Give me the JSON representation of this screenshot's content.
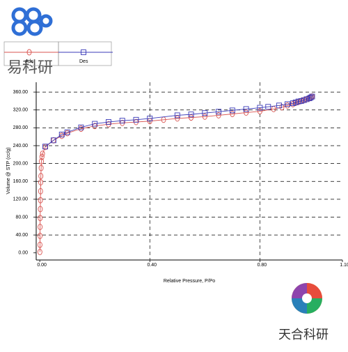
{
  "chart_data": {
    "type": "scatter-line",
    "xlabel": "Relative Pressure, P/Po",
    "ylabel": "Volume @ STP (cc/g)",
    "xlim": [
      -0.013,
      1.1
    ],
    "ylim": [
      -16,
      382
    ],
    "xticks": [
      {
        "value": 0,
        "label": "0.00"
      },
      {
        "value": 0.4,
        "label": "0.40"
      },
      {
        "value": 0.8,
        "label": "0.80"
      },
      {
        "value": 1.1,
        "label": "1.10"
      }
    ],
    "yticks": [
      {
        "value": 0,
        "label": "0.00"
      },
      {
        "value": 40,
        "label": "40.00"
      },
      {
        "value": 80,
        "label": "80.00"
      },
      {
        "value": 120,
        "label": "120.00"
      },
      {
        "value": 160,
        "label": "160.00"
      },
      {
        "value": 200,
        "label": "200.00"
      },
      {
        "value": 240,
        "label": "240.00"
      },
      {
        "value": 280,
        "label": "280.00"
      },
      {
        "value": 320,
        "label": "320.00"
      },
      {
        "value": 360,
        "label": "360.00"
      }
    ],
    "grid": true,
    "series": [
      {
        "name": "Ads",
        "color": "#d9534f",
        "marker": "circle",
        "x": [
          0.0005,
          0.0007,
          0.001,
          0.0012,
          0.0015,
          0.002,
          0.0025,
          0.003,
          0.0035,
          0.004,
          0.005,
          0.006,
          0.008,
          0.01,
          0.02,
          0.05,
          0.08,
          0.1,
          0.15,
          0.2,
          0.25,
          0.3,
          0.35,
          0.4,
          0.45,
          0.5,
          0.55,
          0.6,
          0.65,
          0.7,
          0.75,
          0.8,
          0.85,
          0.88,
          0.9,
          0.92,
          0.93,
          0.94,
          0.95,
          0.96,
          0.97,
          0.98,
          0.985,
          0.99
        ],
        "values": [
          2,
          18,
          38,
          58,
          78,
          98,
          118,
          138,
          158,
          172,
          190,
          205,
          215,
          222,
          237,
          252,
          262,
          268,
          278,
          284,
          288,
          291,
          293,
          295,
          298,
          301,
          303,
          305,
          308,
          311,
          314,
          317,
          322,
          326,
          330,
          333,
          336,
          338,
          340,
          342,
          344,
          346,
          348,
          350
        ]
      },
      {
        "name": "Des",
        "color": "#3a3ab8",
        "marker": "square",
        "x": [
          0.99,
          0.985,
          0.98,
          0.97,
          0.96,
          0.95,
          0.94,
          0.93,
          0.92,
          0.9,
          0.87,
          0.83,
          0.8,
          0.75,
          0.7,
          0.65,
          0.6,
          0.55,
          0.5,
          0.4,
          0.35,
          0.3,
          0.25,
          0.2,
          0.15,
          0.1,
          0.08,
          0.05,
          0.02
        ],
        "values": [
          350,
          348,
          346,
          344,
          342,
          340,
          339,
          337,
          335,
          333,
          330,
          327,
          325,
          322,
          319,
          316,
          313,
          310,
          308,
          301,
          298,
          296,
          293,
          289,
          281,
          270,
          265,
          252,
          238
        ]
      }
    ]
  },
  "watermarks": [
    "易科研",
    "天合科研"
  ]
}
